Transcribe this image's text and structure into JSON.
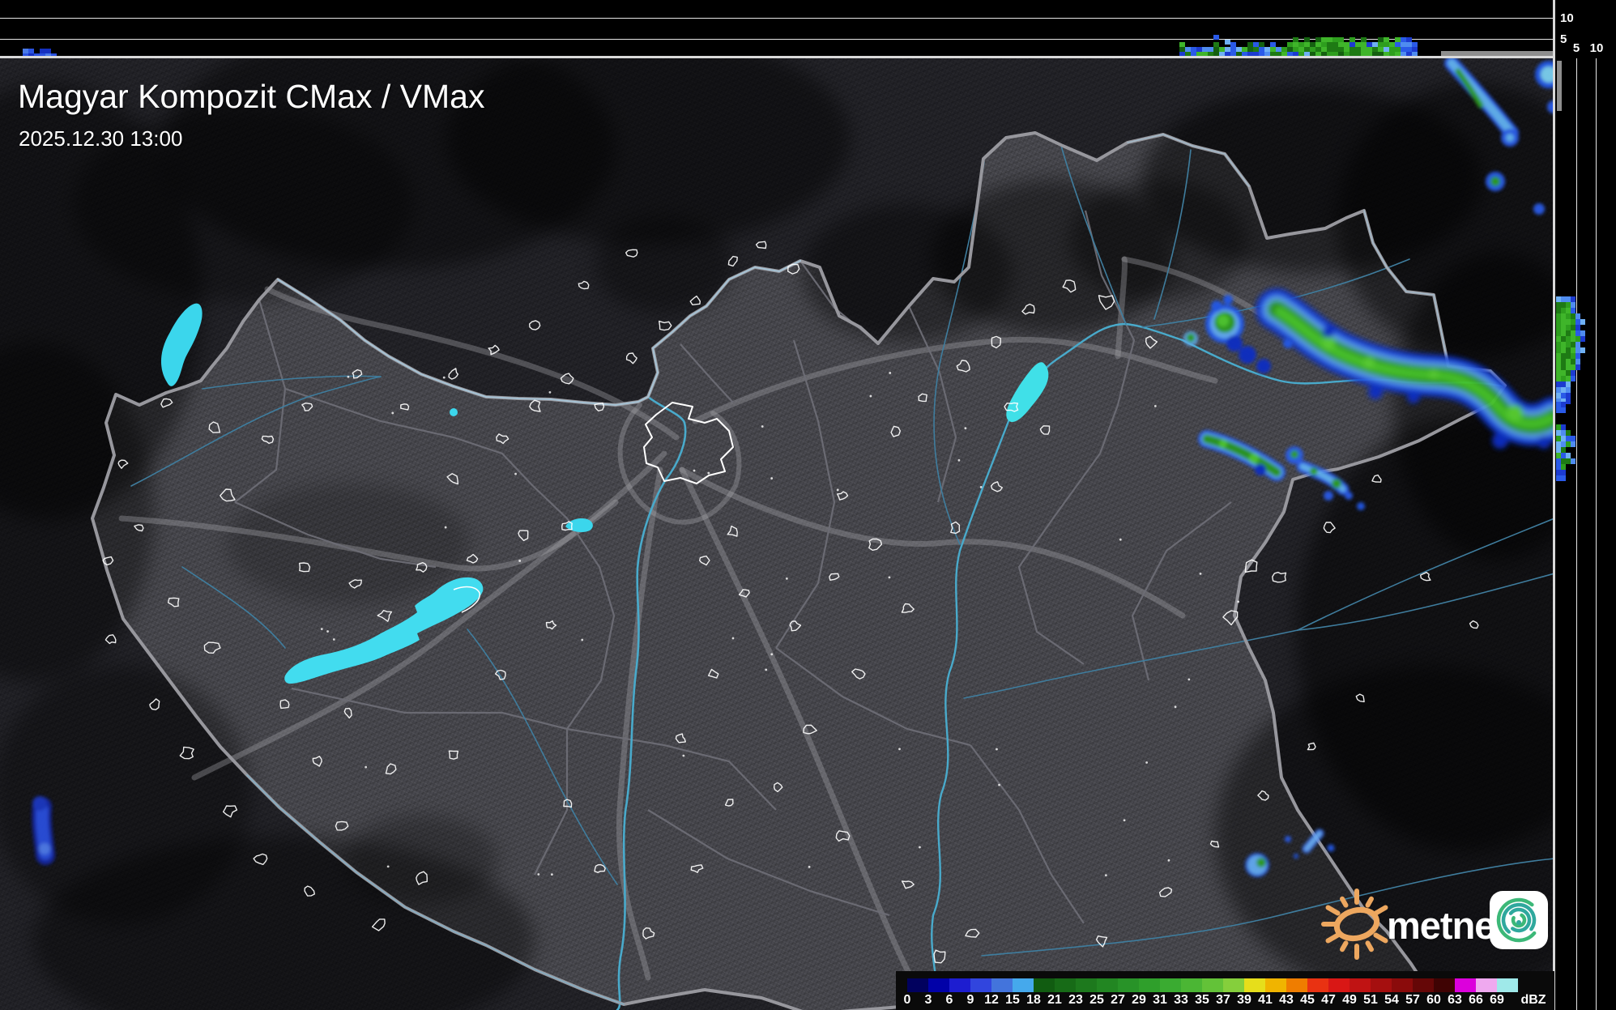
{
  "header": {
    "title": "Magyar Kompozit CMax / VMax",
    "timestamp": "2025.12.30 13:00"
  },
  "branding": {
    "logo_text": "metnet"
  },
  "axes": {
    "top_panel": {
      "upper": "10",
      "lower": "5"
    },
    "right_panel": {
      "near": "5",
      "far": "10"
    }
  },
  "legend": {
    "unit": "dBZ",
    "steps": [
      {
        "label": "0",
        "color": "#01015e"
      },
      {
        "label": "3",
        "color": "#0101a8"
      },
      {
        "label": "6",
        "color": "#1d1dd0"
      },
      {
        "label": "9",
        "color": "#3145de"
      },
      {
        "label": "12",
        "color": "#4374dc"
      },
      {
        "label": "15",
        "color": "#45a9ec"
      },
      {
        "label": "18",
        "color": "#115c11"
      },
      {
        "label": "21",
        "color": "#176b17"
      },
      {
        "label": "23",
        "color": "#1d791d"
      },
      {
        "label": "25",
        "color": "#228622"
      },
      {
        "label": "27",
        "color": "#289328"
      },
      {
        "label": "29",
        "color": "#2f9f2b"
      },
      {
        "label": "31",
        "color": "#3aab31"
      },
      {
        "label": "33",
        "color": "#4bb634"
      },
      {
        "label": "35",
        "color": "#63c238"
      },
      {
        "label": "37",
        "color": "#85cf3c"
      },
      {
        "label": "39",
        "color": "#e6de1b"
      },
      {
        "label": "41",
        "color": "#f0b400"
      },
      {
        "label": "43",
        "color": "#ef7d00"
      },
      {
        "label": "45",
        "color": "#e93212"
      },
      {
        "label": "47",
        "color": "#d91715"
      },
      {
        "label": "49",
        "color": "#c01313"
      },
      {
        "label": "51",
        "color": "#a50f0f"
      },
      {
        "label": "54",
        "color": "#8a0b0b"
      },
      {
        "label": "57",
        "color": "#650707"
      },
      {
        "label": "60",
        "color": "#3f0303"
      },
      {
        "label": "63",
        "color": "#dc00dc"
      },
      {
        "label": "66",
        "color": "#efa9ef"
      },
      {
        "label": "69",
        "color": "#9fe9e9"
      }
    ]
  },
  "colors": {
    "water": "#3bd6ec",
    "echo_green": "#2f9e23",
    "echo_blue": "#2a5ae8",
    "terrain": "#3f3f45",
    "country_border": "#97979d"
  }
}
